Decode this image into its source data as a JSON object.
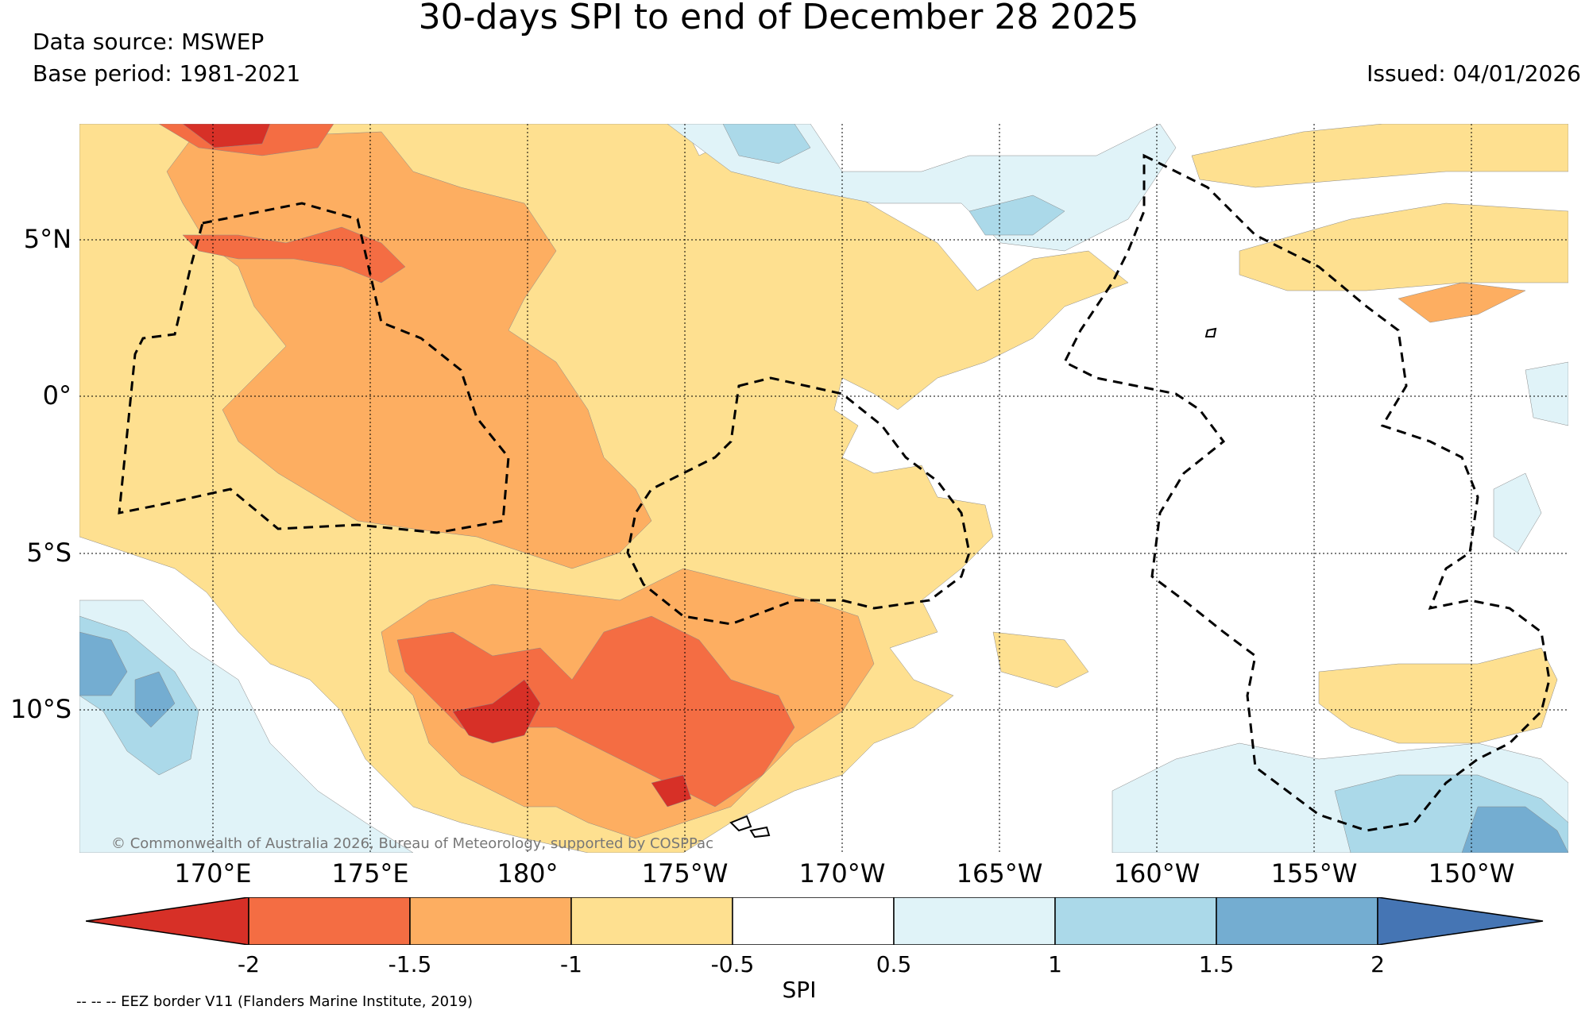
{
  "title": "30-days SPI to end of December 28 2025",
  "data_source": "Data source: MSWEP",
  "base_period": "Base period: 1981-2021",
  "issued": "Issued: 04/01/2026",
  "copyright": "© Commonwealth of Australia 2026, Bureau of Meteorology, supported by COSPPac",
  "lat_labels": [
    "5°N",
    "0°",
    "5°S",
    "10°S"
  ],
  "lon_labels": [
    "170°E",
    "175°E",
    "180°",
    "175°W",
    "170°W",
    "165°W",
    "160°W",
    "155°W",
    "150°W"
  ],
  "colorbar": {
    "title": "SPI",
    "ticks": [
      "-2",
      "-1.5",
      "-1",
      "-0.5",
      "0.5",
      "1",
      "1.5",
      "2"
    ],
    "colors": [
      "#d73027",
      "#f46d43",
      "#fdae61",
      "#fee090",
      "#ffffff",
      "#e0f3f8",
      "#abd9e9",
      "#74add1",
      "#4575b4"
    ]
  },
  "legend_note": "-- -- -- EEZ border V11 (Flanders Marine Institute, 2019)"
}
